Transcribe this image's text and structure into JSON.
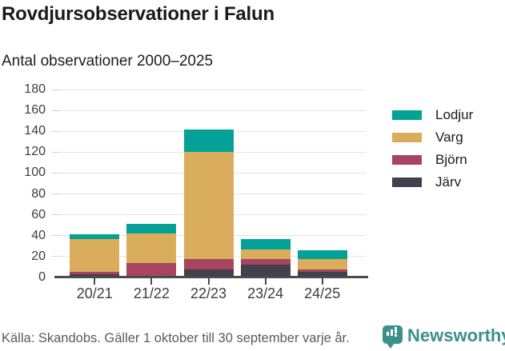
{
  "header": {
    "title": "Rovdjursobservationer i Falun",
    "subtitle": "Antal observationer 2000–2025"
  },
  "chart_data": {
    "type": "bar",
    "stacked": true,
    "title": "Rovdjursobservationer i Falun",
    "subtitle": "Antal observationer 2000–2025",
    "categories": [
      "20/21",
      "21/22",
      "22/23",
      "23/24",
      "24/25"
    ],
    "series": [
      {
        "name": "Järv",
        "color": "#433f4c",
        "values": [
          3,
          1,
          8,
          12,
          5
        ]
      },
      {
        "name": "Björn",
        "color": "#a64461",
        "values": [
          2,
          13,
          10,
          6,
          3
        ]
      },
      {
        "name": "Varg",
        "color": "#d9ad5c",
        "values": [
          32,
          28,
          102,
          9,
          10
        ]
      },
      {
        "name": "Lodjur",
        "color": "#04a197",
        "values": [
          4,
          9,
          22,
          10,
          8
        ]
      }
    ],
    "totals": [
      41,
      51,
      142,
      37,
      26
    ],
    "legend": [
      "Lodjur",
      "Varg",
      "Björn",
      "Järv"
    ],
    "legend_position": "right",
    "xlabel": "",
    "ylabel": "",
    "ylim": [
      0,
      180
    ],
    "ytick_step": 20,
    "grid": true
  },
  "footer": {
    "source": "Källa: Skandobs. Gäller 1 oktober till 30 september varje år.",
    "brand": "Newsworthy"
  },
  "colors": {
    "axis": "#4b4b4b",
    "gridline": "#e4e4e4",
    "title_text": "#1a1a1a",
    "tick_text": "#3d3d3d",
    "source_text": "#5a5a5a",
    "brand_teal": "#3d8f8c"
  }
}
